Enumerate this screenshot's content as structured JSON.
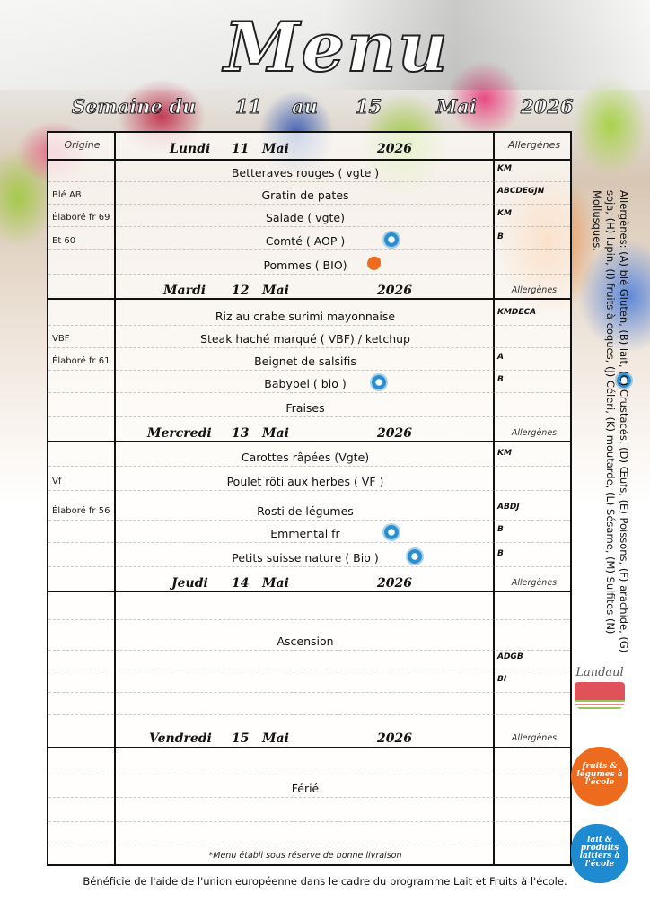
{
  "title": "Menu",
  "week": {
    "prefix": "Semaine du",
    "start": "11",
    "mid": "au",
    "end": "15",
    "month": "Mai",
    "year": "2026"
  },
  "header": {
    "origin": "Origine",
    "allergens": "Allergènes"
  },
  "days": [
    {
      "day": "Lundi",
      "num": "11",
      "month": "Mai",
      "year": "2026",
      "allergen_label": "Allergènes",
      "items": [
        {
          "origin": "",
          "dish": "Betteraves rouges (  vgte    )",
          "allergens": "KM",
          "logo": ""
        },
        {
          "origin": "Blé AB",
          "dish": "Gratin de pates",
          "allergens": "ABCDEGJN",
          "logo": ""
        },
        {
          "origin": "Élaboré fr 69",
          "dish": "Salade ( vgte)",
          "allergens": "KM",
          "logo": ""
        },
        {
          "origin": "Et 60",
          "dish": "Comté ( AOP )",
          "allergens": "B",
          "logo": "lait-icon"
        },
        {
          "origin": "",
          "dish": "Pommes ( BIO)",
          "allergens": "",
          "logo": "fruit-icon"
        }
      ]
    },
    {
      "day": "Mardi",
      "num": "12",
      "month": "Mai",
      "year": "2026",
      "allergen_label": "Allergènes",
      "items": [
        {
          "origin": "",
          "dish": "Riz au crabe surimi mayonnaise",
          "allergens": "KMDECA",
          "logo": ""
        },
        {
          "origin": "VBF",
          "dish": "Steak  haché marqué  ( VBF)  / ketchup",
          "allergens": "",
          "logo": ""
        },
        {
          "origin": "Élaboré fr 61",
          "dish": "Beignet de salsifis",
          "allergens": "A",
          "logo": ""
        },
        {
          "origin": "",
          "dish": "Babybel ( bio )",
          "allergens": "B",
          "logo": "lait-icon"
        },
        {
          "origin": "",
          "dish": "Fraises",
          "allergens": "",
          "logo": ""
        }
      ]
    },
    {
      "day": "Mercredi",
      "num": "13",
      "month": "Mai",
      "year": "2026",
      "allergen_label": "Allergènes",
      "items": [
        {
          "origin": "",
          "dish": "Carottes râpées  (Vgte)",
          "allergens": "KM",
          "logo": ""
        },
        {
          "origin": "Vf",
          "dish": "Poulet  rôti aux herbes  ( VF )",
          "allergens": "",
          "logo": ""
        },
        {
          "origin": "Élaboré fr 56",
          "dish": "Rosti de légumes",
          "allergens": "ABDJ",
          "logo": ""
        },
        {
          "origin": "",
          "dish": "Emmental fr",
          "allergens": "B",
          "logo": "lait-icon"
        },
        {
          "origin": "",
          "dish": "Petits suisse  nature ( Bio )",
          "allergens": "B",
          "logo": "lait-icon"
        }
      ]
    },
    {
      "day": "Jeudi",
      "num": "14",
      "month": "Mai",
      "year": "2026",
      "allergen_label": "Allergènes",
      "items": [
        {
          "origin": "",
          "dish": "",
          "allergens": "",
          "logo": ""
        },
        {
          "origin": "",
          "dish": "Ascension",
          "allergens": "",
          "logo": ""
        },
        {
          "origin": "",
          "dish": "",
          "allergens": "ADGB",
          "logo": ""
        },
        {
          "origin": "",
          "dish": "",
          "allergens": "BI",
          "logo": ""
        },
        {
          "origin": "",
          "dish": "",
          "allergens": "",
          "logo": ""
        }
      ]
    },
    {
      "day": "Vendredi",
      "num": "15",
      "month": "Mai",
      "year": "2026",
      "allergen_label": "Allergènes",
      "items": [
        {
          "origin": "",
          "dish": "",
          "allergens": "",
          "logo": ""
        },
        {
          "origin": "",
          "dish": "Férié",
          "allergens": "",
          "logo": ""
        },
        {
          "origin": "",
          "dish": "",
          "allergens": "",
          "logo": ""
        },
        {
          "origin": "",
          "dish": "",
          "allergens": "",
          "logo": ""
        }
      ]
    }
  ],
  "note": "*Menu établi sous réserve de bonne livraison",
  "legend": "Allergènes: (A) blé Gluten, (B) lait, (C) Crustacés, (D) Œufs, (E) Poissons, (F) arachide, (G) soja, (H) lupin, (I) fruits à coques, (J) Céleri, (K) moutarde, (L) Sésame, (M) Sulfites (N) Mollusques.",
  "logos": {
    "landaul": "Landaul",
    "fruits": "fruits & légumes à l'école",
    "lait": "lait & produits laitiers à l'école"
  },
  "footer": "Bénéficie de l'aide de l'union européenne dans le cadre du programme Lait et Fruits à l'école.",
  "colors": {
    "lait_blue": "#2a8fd0",
    "fruit_orange": "#ec6b1e",
    "landaul_red": "#e0525a"
  }
}
